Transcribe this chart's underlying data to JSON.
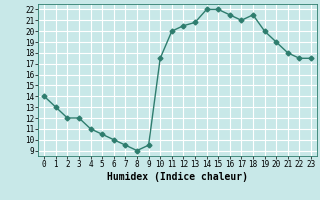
{
  "x": [
    0,
    1,
    2,
    3,
    4,
    5,
    6,
    7,
    8,
    9,
    10,
    11,
    12,
    13,
    14,
    15,
    16,
    17,
    18,
    19,
    20,
    21,
    22,
    23
  ],
  "y": [
    14,
    13,
    12,
    12,
    11,
    10.5,
    10,
    9.5,
    9,
    9.5,
    17.5,
    20,
    20.5,
    20.8,
    22,
    22,
    21.5,
    21,
    21.5,
    20,
    19,
    18,
    17.5,
    17.5
  ],
  "line_color": "#2e7d6e",
  "marker": "D",
  "marker_size": 2.5,
  "background_color": "#c8e8e8",
  "grid_color": "#ffffff",
  "xlabel": "Humidex (Indice chaleur)",
  "xlabel_fontsize": 7,
  "xlim": [
    -0.5,
    23.5
  ],
  "ylim": [
    8.5,
    22.5
  ],
  "yticks": [
    9,
    10,
    11,
    12,
    13,
    14,
    15,
    16,
    17,
    18,
    19,
    20,
    21,
    22
  ],
  "xticks": [
    0,
    1,
    2,
    3,
    4,
    5,
    6,
    7,
    8,
    9,
    10,
    11,
    12,
    13,
    14,
    15,
    16,
    17,
    18,
    19,
    20,
    21,
    22,
    23
  ],
  "tick_fontsize": 5.5,
  "line_width": 1.0
}
